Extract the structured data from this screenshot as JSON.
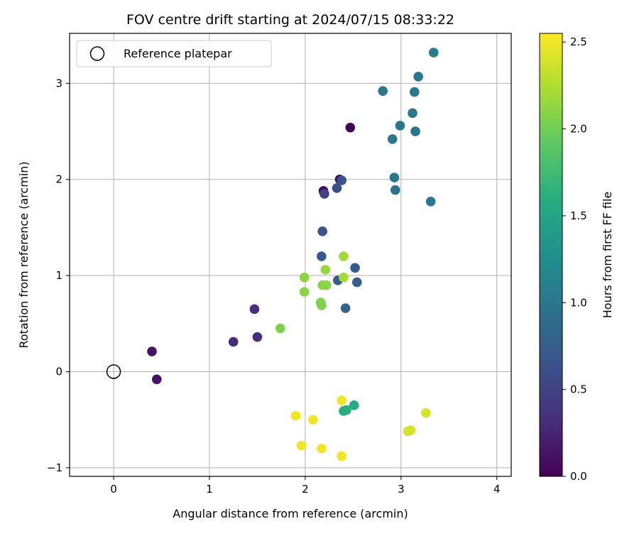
{
  "chart_data": {
    "type": "scatter",
    "title": "FOV centre drift starting at 2024/07/15 08:33:22",
    "xlabel": "Angular distance from reference (arcmin)",
    "ylabel": "Rotation from reference (arcmin)",
    "xlim": [
      -0.46,
      4.15
    ],
    "ylim": [
      -1.09,
      3.52
    ],
    "xticks": [
      0,
      1,
      2,
      3,
      4
    ],
    "yticks": [
      -1,
      0,
      1,
      2,
      3
    ],
    "grid": true,
    "legend": {
      "position": "top-left",
      "entries": [
        "Reference platepar"
      ]
    },
    "reference": {
      "name": "Reference platepar",
      "x": 0,
      "y": 0
    },
    "colorbar": {
      "label": "Hours from first FF file",
      "colormap": "viridis",
      "range": [
        0.0,
        2.55
      ],
      "ticks": [
        "0.0",
        "0.5",
        "1.0",
        "1.5",
        "2.0",
        "2.5"
      ],
      "tick_values": [
        0.0,
        0.5,
        1.0,
        1.5,
        2.0,
        2.5
      ]
    },
    "points": [
      {
        "x": 0.4,
        "y": 0.21,
        "c": 0.13
      },
      {
        "x": 0.45,
        "y": -0.08,
        "c": 0.12
      },
      {
        "x": 1.25,
        "y": 0.31,
        "c": 0.3
      },
      {
        "x": 1.5,
        "y": 0.36,
        "c": 0.32
      },
      {
        "x": 1.47,
        "y": 0.65,
        "c": 0.33
      },
      {
        "x": 2.19,
        "y": 1.88,
        "c": 0.05
      },
      {
        "x": 2.36,
        "y": 2.0,
        "c": 0.05
      },
      {
        "x": 2.47,
        "y": 2.54,
        "c": 0.03
      },
      {
        "x": 2.2,
        "y": 1.85,
        "c": 0.5
      },
      {
        "x": 2.33,
        "y": 1.91,
        "c": 0.6
      },
      {
        "x": 2.38,
        "y": 1.99,
        "c": 0.65
      },
      {
        "x": 2.18,
        "y": 1.46,
        "c": 0.68
      },
      {
        "x": 2.17,
        "y": 1.2,
        "c": 0.72
      },
      {
        "x": 2.52,
        "y": 1.08,
        "c": 0.72
      },
      {
        "x": 2.34,
        "y": 0.95,
        "c": 0.75
      },
      {
        "x": 2.54,
        "y": 0.93,
        "c": 0.75
      },
      {
        "x": 2.42,
        "y": 0.66,
        "c": 0.8
      },
      {
        "x": 2.81,
        "y": 2.92,
        "c": 1.0
      },
      {
        "x": 3.18,
        "y": 3.07,
        "c": 1.02
      },
      {
        "x": 3.34,
        "y": 3.32,
        "c": 1.05
      },
      {
        "x": 3.14,
        "y": 2.91,
        "c": 1.02
      },
      {
        "x": 3.12,
        "y": 2.69,
        "c": 1.0
      },
      {
        "x": 2.99,
        "y": 2.56,
        "c": 1.0
      },
      {
        "x": 3.15,
        "y": 2.5,
        "c": 1.0
      },
      {
        "x": 2.91,
        "y": 2.42,
        "c": 1.02
      },
      {
        "x": 2.93,
        "y": 2.02,
        "c": 1.0
      },
      {
        "x": 2.94,
        "y": 1.89,
        "c": 0.98
      },
      {
        "x": 3.31,
        "y": 1.77,
        "c": 1.0
      },
      {
        "x": 1.74,
        "y": 0.45,
        "c": 2.05
      },
      {
        "x": 1.99,
        "y": 0.98,
        "c": 2.1
      },
      {
        "x": 1.99,
        "y": 0.83,
        "c": 2.1
      },
      {
        "x": 2.21,
        "y": 1.06,
        "c": 2.15
      },
      {
        "x": 2.4,
        "y": 1.2,
        "c": 2.2
      },
      {
        "x": 2.4,
        "y": 0.98,
        "c": 2.2
      },
      {
        "x": 2.18,
        "y": 0.9,
        "c": 2.1
      },
      {
        "x": 2.22,
        "y": 0.9,
        "c": 2.1
      },
      {
        "x": 2.16,
        "y": 0.72,
        "c": 2.05
      },
      {
        "x": 2.17,
        "y": 0.69,
        "c": 2.05
      },
      {
        "x": 2.4,
        "y": -0.41,
        "c": 1.6
      },
      {
        "x": 2.43,
        "y": -0.4,
        "c": 1.6
      },
      {
        "x": 2.51,
        "y": -0.35,
        "c": 1.58
      },
      {
        "x": 2.38,
        "y": -0.3,
        "c": 2.5
      },
      {
        "x": 1.9,
        "y": -0.46,
        "c": 2.5
      },
      {
        "x": 2.08,
        "y": -0.5,
        "c": 2.5
      },
      {
        "x": 1.96,
        "y": -0.77,
        "c": 2.5
      },
      {
        "x": 2.17,
        "y": -0.8,
        "c": 2.5
      },
      {
        "x": 2.38,
        "y": -0.88,
        "c": 2.5
      },
      {
        "x": 3.26,
        "y": -0.43,
        "c": 2.4
      },
      {
        "x": 3.1,
        "y": -0.61,
        "c": 2.4
      },
      {
        "x": 3.07,
        "y": -0.62,
        "c": 2.4
      }
    ]
  }
}
